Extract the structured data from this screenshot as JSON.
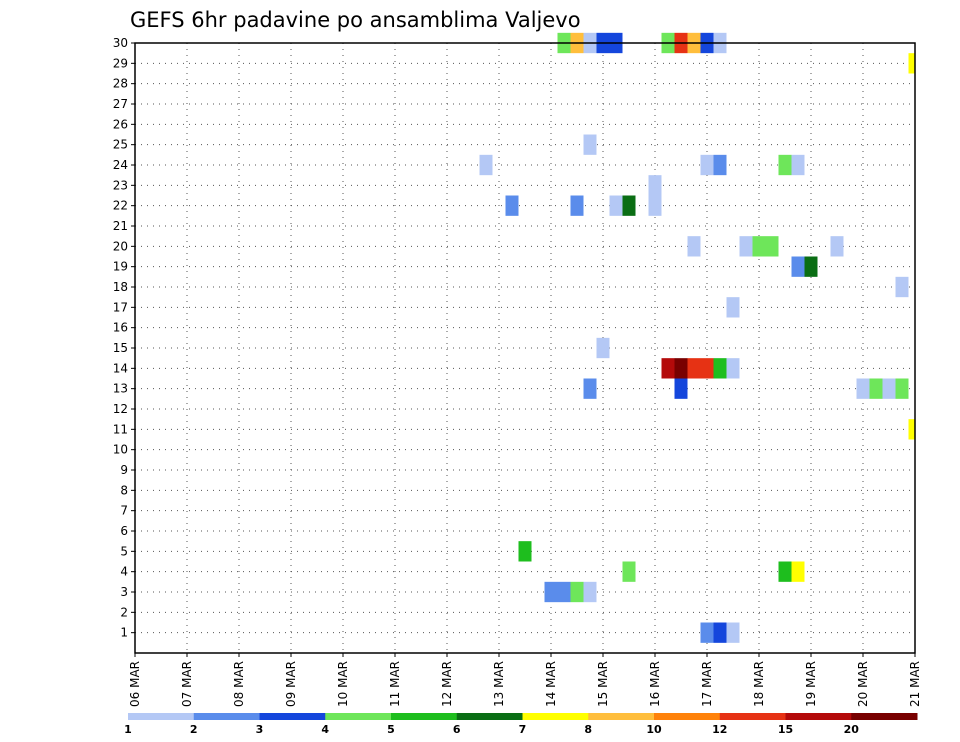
{
  "chart_data": {
    "type": "heatmap",
    "title": "GEFS 6hr padavine po ansamblima Valjevo",
    "xlabel": "",
    "ylabel": "",
    "x_ticks": [
      "06 MAR",
      "07 MAR",
      "08 MAR",
      "09 MAR",
      "10 MAR",
      "11 MAR",
      "12 MAR",
      "13 MAR",
      "14 MAR",
      "15 MAR",
      "16 MAR",
      "17 MAR",
      "18 MAR",
      "19 MAR",
      "20 MAR",
      "21 MAR"
    ],
    "x_range": [
      0,
      15
    ],
    "y_ticks": [
      1,
      2,
      3,
      4,
      5,
      6,
      7,
      8,
      9,
      10,
      11,
      12,
      13,
      14,
      15,
      16,
      17,
      18,
      19,
      20,
      21,
      22,
      23,
      24,
      25,
      26,
      27,
      28,
      29,
      30
    ],
    "y_range": [
      0,
      30
    ],
    "grid": true,
    "colorbar": {
      "labels": [
        "1",
        "2",
        "3",
        "4",
        "5",
        "6",
        "7",
        "8",
        "10",
        "12",
        "15",
        "20"
      ],
      "colors": [
        "#b4c8f5",
        "#5a8ceb",
        "#1446dc",
        "#6ee65a",
        "#1ebe1e",
        "#0a6e14",
        "#ffff00",
        "#ffbe3c",
        "#ff820a",
        "#e63214",
        "#b40a0a",
        "#780000"
      ]
    },
    "cells": [
      {
        "day": 8.25,
        "member": 30,
        "color": "#6ee65a"
      },
      {
        "day": 8.5,
        "member": 30,
        "color": "#ffbe3c"
      },
      {
        "day": 8.75,
        "member": 30,
        "color": "#b4c8f5"
      },
      {
        "day": 9.0,
        "member": 30,
        "color": "#1446dc"
      },
      {
        "day": 9.25,
        "member": 30,
        "color": "#1446dc"
      },
      {
        "day": 10.25,
        "member": 30,
        "color": "#6ee65a"
      },
      {
        "day": 10.5,
        "member": 30,
        "color": "#e63214"
      },
      {
        "day": 10.75,
        "member": 30,
        "color": "#ffbe3c"
      },
      {
        "day": 11.0,
        "member": 30,
        "color": "#1446dc"
      },
      {
        "day": 11.25,
        "member": 30,
        "color": "#b4c8f5"
      },
      {
        "day": 15.0,
        "member": 29,
        "color": "#ffff00"
      },
      {
        "day": 8.75,
        "member": 25,
        "color": "#b4c8f5"
      },
      {
        "day": 6.75,
        "member": 24,
        "color": "#b4c8f5"
      },
      {
        "day": 11.0,
        "member": 24,
        "color": "#b4c8f5"
      },
      {
        "day": 11.25,
        "member": 24,
        "color": "#5a8ceb"
      },
      {
        "day": 12.5,
        "member": 24,
        "color": "#6ee65a"
      },
      {
        "day": 12.75,
        "member": 24,
        "color": "#b4c8f5"
      },
      {
        "day": 10.0,
        "member": 23,
        "color": "#b4c8f5"
      },
      {
        "day": 7.25,
        "member": 22,
        "color": "#5a8ceb"
      },
      {
        "day": 8.5,
        "member": 22,
        "color": "#5a8ceb"
      },
      {
        "day": 9.25,
        "member": 22,
        "color": "#b4c8f5"
      },
      {
        "day": 9.5,
        "member": 22,
        "color": "#0a6e14"
      },
      {
        "day": 10.0,
        "member": 22,
        "color": "#b4c8f5"
      },
      {
        "day": 10.75,
        "member": 20,
        "color": "#b4c8f5"
      },
      {
        "day": 11.75,
        "member": 20,
        "color": "#b4c8f5"
      },
      {
        "day": 12.0,
        "member": 20,
        "color": "#6ee65a"
      },
      {
        "day": 12.25,
        "member": 20,
        "color": "#6ee65a"
      },
      {
        "day": 13.5,
        "member": 20,
        "color": "#b4c8f5"
      },
      {
        "day": 12.75,
        "member": 19,
        "color": "#5a8ceb"
      },
      {
        "day": 13.0,
        "member": 19,
        "color": "#0a6e14"
      },
      {
        "day": 14.75,
        "member": 18,
        "color": "#b4c8f5"
      },
      {
        "day": 11.5,
        "member": 17,
        "color": "#b4c8f5"
      },
      {
        "day": 9.0,
        "member": 15,
        "color": "#b4c8f5"
      },
      {
        "day": 10.25,
        "member": 14,
        "color": "#b40a0a"
      },
      {
        "day": 10.5,
        "member": 14,
        "color": "#780000"
      },
      {
        "day": 10.75,
        "member": 14,
        "color": "#e63214"
      },
      {
        "day": 11.0,
        "member": 14,
        "color": "#e63214"
      },
      {
        "day": 11.25,
        "member": 14,
        "color": "#1ebe1e"
      },
      {
        "day": 11.5,
        "member": 14,
        "color": "#b4c8f5"
      },
      {
        "day": 8.75,
        "member": 13,
        "color": "#5a8ceb"
      },
      {
        "day": 10.5,
        "member": 13,
        "color": "#1446dc"
      },
      {
        "day": 14.0,
        "member": 13,
        "color": "#b4c8f5"
      },
      {
        "day": 14.25,
        "member": 13,
        "color": "#6ee65a"
      },
      {
        "day": 14.5,
        "member": 13,
        "color": "#b4c8f5"
      },
      {
        "day": 14.75,
        "member": 13,
        "color": "#6ee65a"
      },
      {
        "day": 15.0,
        "member": 11,
        "color": "#ffff00"
      },
      {
        "day": 7.5,
        "member": 5,
        "color": "#1ebe1e"
      },
      {
        "day": 9.5,
        "member": 4,
        "color": "#6ee65a"
      },
      {
        "day": 12.5,
        "member": 4,
        "color": "#1ebe1e"
      },
      {
        "day": 12.75,
        "member": 4,
        "color": "#ffff00"
      },
      {
        "day": 8.0,
        "member": 3,
        "color": "#5a8ceb"
      },
      {
        "day": 8.25,
        "member": 3,
        "color": "#5a8ceb"
      },
      {
        "day": 8.5,
        "member": 3,
        "color": "#6ee65a"
      },
      {
        "day": 8.75,
        "member": 3,
        "color": "#b4c8f5"
      },
      {
        "day": 11.0,
        "member": 1,
        "color": "#5a8ceb"
      },
      {
        "day": 11.25,
        "member": 1,
        "color": "#1446dc"
      },
      {
        "day": 11.5,
        "member": 1,
        "color": "#b4c8f5"
      }
    ]
  }
}
